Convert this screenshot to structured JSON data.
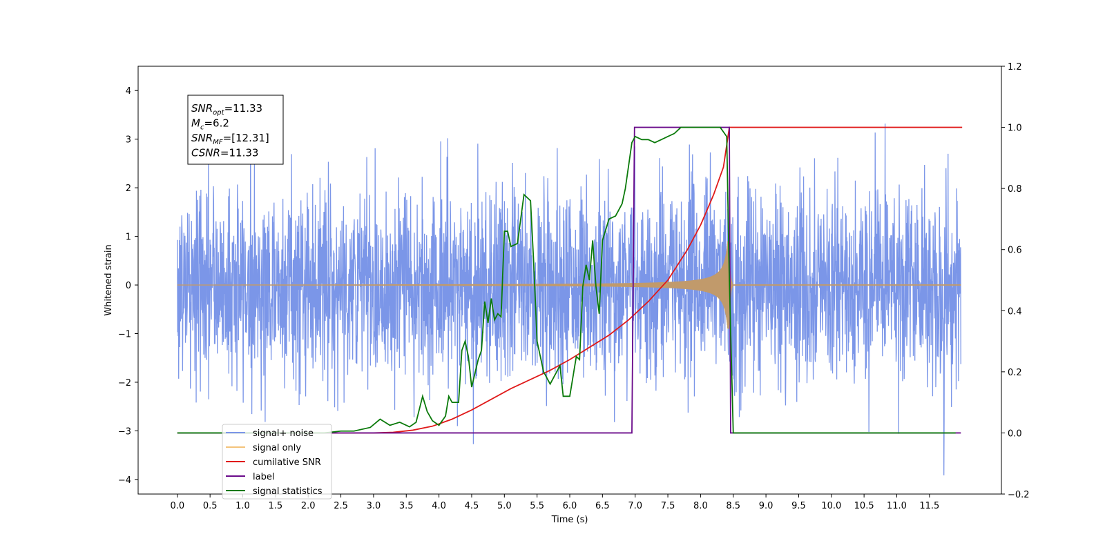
{
  "chart_data": {
    "type": "line",
    "xlabel": "Time (s)",
    "ylabel": "Whitened strain",
    "xlim": [
      -0.6,
      12.6
    ],
    "ylim": [
      -4.3,
      4.5
    ],
    "ylim_right": [
      -0.2,
      1.2
    ],
    "x_ticks": [
      0.0,
      0.5,
      1.0,
      1.5,
      2.0,
      2.5,
      3.0,
      3.5,
      4.0,
      4.5,
      5.0,
      5.5,
      6.0,
      6.5,
      7.0,
      7.5,
      8.0,
      8.5,
      9.0,
      9.5,
      10.0,
      10.5,
      11.0,
      11.5
    ],
    "x_tick_labels": [
      "0.0",
      "0.5",
      "1.0",
      "1.5",
      "2.0",
      "2.5",
      "3.0",
      "3.5",
      "4.0",
      "4.5",
      "5.0",
      "5.5",
      "6.0",
      "6.5",
      "7.0",
      "7.5",
      "8.0",
      "8.5",
      "9.0",
      "9.5",
      "10.0",
      "10.5",
      "11.0",
      "11.5"
    ],
    "y_ticks": [
      -4,
      -3,
      -2,
      -1,
      0,
      1,
      2,
      3,
      4
    ],
    "y_tick_labels": [
      "−4",
      "−3",
      "−2",
      "−1",
      "0",
      "1",
      "2",
      "3",
      "4"
    ],
    "y_right_ticks": [
      -0.2,
      0.0,
      0.2,
      0.4,
      0.6,
      0.8,
      1.0,
      1.2
    ],
    "y_right_tick_labels": [
      "−0.2",
      "0.0",
      "0.2",
      "0.4",
      "0.6",
      "0.8",
      "1.0",
      "1.2"
    ],
    "grid": false,
    "legend_placement": "lower-left",
    "annotation": {
      "lines": [
        {
          "sym": "SNR",
          "sub": "opt",
          "value": "=11.33"
        },
        {
          "sym": "M",
          "sub": "c",
          "value": "=6.2"
        },
        {
          "sym": "SNR",
          "sub": "MF",
          "value": "=[12.31]"
        },
        {
          "sym": "CSNR",
          "sub": "",
          "value": "=11.33"
        }
      ]
    },
    "series": [
      {
        "name": "signal+ noise",
        "color": "#7b96e8",
        "axis": "left",
        "kind": "noisy-signal",
        "t_start": 0.0,
        "t_end": 11.98,
        "noise_std": 1.0
      },
      {
        "name": "signal only",
        "color": "#f4c37a",
        "axis": "left",
        "kind": "chirp",
        "t_start": 0.0,
        "t_merge": 8.44,
        "t_end": 11.98,
        "peak_amplitude": 0.9
      },
      {
        "name": "cumilative SNR",
        "color": "#e01a1a",
        "axis": "right",
        "x": [
          0.0,
          3.0,
          3.3,
          3.6,
          3.9,
          4.2,
          4.5,
          4.8,
          5.1,
          5.4,
          5.7,
          6.0,
          6.3,
          6.6,
          6.9,
          7.2,
          7.5,
          7.8,
          8.0,
          8.2,
          8.35,
          8.44,
          12.0
        ],
        "y": [
          0.0,
          0.0,
          0.002,
          0.009,
          0.022,
          0.045,
          0.075,
          0.11,
          0.145,
          0.175,
          0.205,
          0.24,
          0.28,
          0.32,
          0.37,
          0.43,
          0.5,
          0.6,
          0.68,
          0.78,
          0.87,
          1.0,
          1.0
        ]
      },
      {
        "name": "label",
        "color": "#6a0a8a",
        "axis": "right",
        "x": [
          0.0,
          6.95,
          6.99,
          8.44,
          8.46,
          11.98
        ],
        "y": [
          0.0,
          0.0,
          1.0,
          1.0,
          0.0,
          0.0
        ]
      },
      {
        "name": "signal statistics",
        "color": "#0b7a0b",
        "axis": "right",
        "x": [
          0.0,
          2.25,
          2.5,
          2.7,
          2.95,
          3.1,
          3.25,
          3.4,
          3.55,
          3.65,
          3.75,
          3.82,
          3.9,
          4.0,
          4.1,
          4.15,
          4.2,
          4.3,
          4.35,
          4.4,
          4.45,
          4.5,
          4.6,
          4.65,
          4.7,
          4.75,
          4.8,
          4.85,
          4.9,
          4.95,
          5.0,
          5.05,
          5.1,
          5.2,
          5.3,
          5.4,
          5.45,
          5.5,
          5.6,
          5.7,
          5.8,
          5.85,
          5.9,
          6.0,
          6.1,
          6.15,
          6.2,
          6.25,
          6.3,
          6.35,
          6.4,
          6.45,
          6.5,
          6.6,
          6.7,
          6.8,
          6.85,
          6.95,
          7.0,
          7.1,
          7.2,
          7.3,
          7.4,
          7.5,
          7.6,
          7.7,
          8.0,
          8.3,
          8.4,
          8.44,
          8.5,
          8.55,
          11.9
        ],
        "y": [
          0.0,
          0.0,
          0.006,
          0.006,
          0.018,
          0.045,
          0.025,
          0.035,
          0.02,
          0.035,
          0.12,
          0.07,
          0.04,
          0.025,
          0.055,
          0.12,
          0.1,
          0.1,
          0.27,
          0.3,
          0.25,
          0.15,
          0.24,
          0.27,
          0.43,
          0.36,
          0.44,
          0.37,
          0.39,
          0.38,
          0.66,
          0.66,
          0.61,
          0.62,
          0.78,
          0.76,
          0.55,
          0.3,
          0.2,
          0.16,
          0.2,
          0.22,
          0.12,
          0.12,
          0.25,
          0.24,
          0.48,
          0.55,
          0.5,
          0.63,
          0.48,
          0.39,
          0.63,
          0.7,
          0.71,
          0.75,
          0.8,
          0.95,
          0.97,
          0.96,
          0.96,
          0.95,
          0.96,
          0.97,
          0.98,
          1.0,
          1.0,
          1.0,
          0.97,
          0.5,
          0.0,
          0.0,
          0.0
        ]
      }
    ]
  }
}
